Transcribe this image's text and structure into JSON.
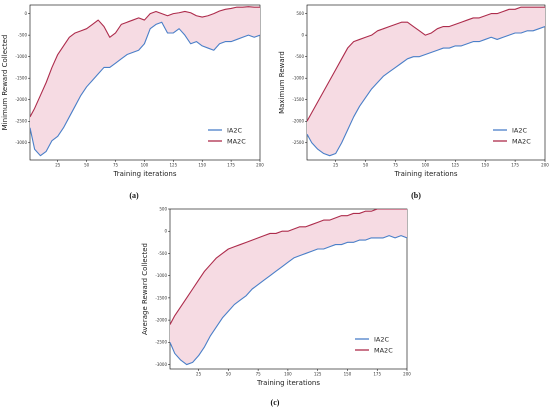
{
  "chart_data": [
    {
      "id": "a",
      "type": "line",
      "panel_label": "(a)",
      "xlabel": "Training iterations",
      "ylabel": "Minimum Reward Collected",
      "xlim": [
        1,
        200
      ],
      "ylim": [
        -3400,
        200
      ],
      "xticks": [
        25,
        50,
        75,
        100,
        125,
        150,
        175,
        200
      ],
      "yticks": [
        0,
        -500,
        -1000,
        -1500,
        -2000,
        -2500,
        -3000
      ],
      "legend_position": "lower-right",
      "fill_between": true,
      "fill_color": "#f6dbe3",
      "series": [
        {
          "name": "IA2C",
          "color": "#4a7fc8",
          "x": [
            1,
            5,
            10,
            15,
            20,
            25,
            30,
            35,
            40,
            45,
            50,
            55,
            60,
            65,
            70,
            75,
            80,
            85,
            90,
            95,
            100,
            105,
            110,
            115,
            120,
            125,
            130,
            135,
            140,
            145,
            150,
            155,
            160,
            165,
            170,
            175,
            180,
            185,
            190,
            195,
            200
          ],
          "values": [
            -2650,
            -3150,
            -3300,
            -3200,
            -2950,
            -2850,
            -2650,
            -2400,
            -2150,
            -1900,
            -1700,
            -1550,
            -1400,
            -1250,
            -1250,
            -1150,
            -1050,
            -950,
            -900,
            -850,
            -700,
            -350,
            -250,
            -200,
            -450,
            -450,
            -350,
            -500,
            -700,
            -650,
            -750,
            -800,
            -850,
            -700,
            -650,
            -650,
            -600,
            -550,
            -500,
            -550,
            -500
          ]
        },
        {
          "name": "MA2C",
          "color": "#ad2c4c",
          "x": [
            1,
            5,
            10,
            15,
            20,
            25,
            30,
            35,
            40,
            45,
            50,
            55,
            60,
            65,
            70,
            75,
            80,
            85,
            90,
            95,
            100,
            105,
            110,
            115,
            120,
            125,
            130,
            135,
            140,
            145,
            150,
            155,
            160,
            165,
            170,
            175,
            180,
            185,
            190,
            195,
            200
          ],
          "values": [
            -2400,
            -2200,
            -1900,
            -1600,
            -1250,
            -950,
            -750,
            -550,
            -450,
            -400,
            -350,
            -250,
            -150,
            -300,
            -550,
            -450,
            -250,
            -200,
            -150,
            -100,
            -150,
            0,
            50,
            0,
            -50,
            0,
            20,
            50,
            20,
            -50,
            -80,
            -50,
            0,
            60,
            100,
            120,
            150,
            150,
            160,
            150,
            150
          ]
        }
      ]
    },
    {
      "id": "b",
      "type": "line",
      "panel_label": "(b)",
      "xlabel": "Training iterations",
      "ylabel": "Maximum Reward",
      "xlim": [
        1,
        200
      ],
      "ylim": [
        -2900,
        700
      ],
      "xticks": [
        25,
        50,
        75,
        100,
        125,
        150,
        175,
        200
      ],
      "yticks": [
        500,
        0,
        -500,
        -1000,
        -1500,
        -2000,
        -2500
      ],
      "legend_position": "lower-right",
      "fill_between": true,
      "fill_color": "#f6dbe3",
      "series": [
        {
          "name": "IA2C",
          "color": "#4a7fc8",
          "x": [
            1,
            5,
            10,
            15,
            20,
            25,
            30,
            35,
            40,
            45,
            50,
            55,
            60,
            65,
            70,
            75,
            80,
            85,
            90,
            95,
            100,
            105,
            110,
            115,
            120,
            125,
            130,
            135,
            140,
            145,
            150,
            155,
            160,
            165,
            170,
            175,
            180,
            185,
            190,
            195,
            200
          ],
          "values": [
            -2300,
            -2500,
            -2650,
            -2750,
            -2800,
            -2750,
            -2500,
            -2200,
            -1900,
            -1650,
            -1450,
            -1250,
            -1100,
            -950,
            -850,
            -750,
            -650,
            -550,
            -500,
            -500,
            -450,
            -400,
            -350,
            -300,
            -300,
            -250,
            -250,
            -200,
            -150,
            -150,
            -100,
            -50,
            -100,
            -50,
            0,
            50,
            50,
            100,
            100,
            150,
            200
          ]
        },
        {
          "name": "MA2C",
          "color": "#ad2c4c",
          "x": [
            1,
            5,
            10,
            15,
            20,
            25,
            30,
            35,
            40,
            45,
            50,
            55,
            60,
            65,
            70,
            75,
            80,
            85,
            90,
            95,
            100,
            105,
            110,
            115,
            120,
            125,
            130,
            135,
            140,
            145,
            150,
            155,
            160,
            165,
            170,
            175,
            180,
            185,
            190,
            195,
            200
          ],
          "values": [
            -2000,
            -1800,
            -1550,
            -1300,
            -1050,
            -800,
            -550,
            -300,
            -150,
            -100,
            -50,
            0,
            100,
            150,
            200,
            250,
            300,
            300,
            200,
            100,
            0,
            50,
            150,
            200,
            200,
            250,
            300,
            350,
            400,
            400,
            450,
            500,
            500,
            550,
            600,
            600,
            650,
            650,
            650,
            650,
            650
          ]
        }
      ]
    },
    {
      "id": "c",
      "type": "line",
      "panel_label": "(c)",
      "xlabel": "Training iterations",
      "ylabel": "Average Reward Collected",
      "xlim": [
        1,
        200
      ],
      "ylim": [
        -3100,
        500
      ],
      "xticks": [
        25,
        50,
        75,
        100,
        125,
        150,
        175,
        200
      ],
      "yticks": [
        500,
        0,
        -500,
        -1000,
        -1500,
        -2000,
        -2500,
        -3000
      ],
      "legend_position": "lower-right",
      "fill_between": true,
      "fill_color": "#f6dbe3",
      "series": [
        {
          "name": "IA2C",
          "color": "#4a7fc8",
          "x": [
            1,
            5,
            10,
            15,
            20,
            25,
            30,
            35,
            40,
            45,
            50,
            55,
            60,
            65,
            70,
            75,
            80,
            85,
            90,
            95,
            100,
            105,
            110,
            115,
            120,
            125,
            130,
            135,
            140,
            145,
            150,
            155,
            160,
            165,
            170,
            175,
            180,
            185,
            190,
            195,
            200
          ],
          "values": [
            -2500,
            -2750,
            -2900,
            -3000,
            -2950,
            -2800,
            -2600,
            -2350,
            -2150,
            -1950,
            -1800,
            -1650,
            -1550,
            -1450,
            -1300,
            -1200,
            -1100,
            -1000,
            -900,
            -800,
            -700,
            -600,
            -550,
            -500,
            -450,
            -400,
            -400,
            -350,
            -300,
            -300,
            -250,
            -250,
            -200,
            -200,
            -150,
            -150,
            -150,
            -100,
            -150,
            -100,
            -150
          ]
        },
        {
          "name": "MA2C",
          "color": "#ad2c4c",
          "x": [
            1,
            5,
            10,
            15,
            20,
            25,
            30,
            35,
            40,
            45,
            50,
            55,
            60,
            65,
            70,
            75,
            80,
            85,
            90,
            95,
            100,
            105,
            110,
            115,
            120,
            125,
            130,
            135,
            140,
            145,
            150,
            155,
            160,
            165,
            170,
            175,
            180,
            185,
            190,
            195,
            200
          ],
          "values": [
            -2100,
            -1900,
            -1700,
            -1500,
            -1300,
            -1100,
            -900,
            -750,
            -600,
            -500,
            -400,
            -350,
            -300,
            -250,
            -200,
            -150,
            -100,
            -50,
            -50,
            0,
            0,
            50,
            100,
            100,
            150,
            200,
            250,
            250,
            300,
            350,
            350,
            400,
            400,
            450,
            450,
            500,
            500,
            500,
            500,
            500,
            500
          ]
        }
      ]
    }
  ]
}
